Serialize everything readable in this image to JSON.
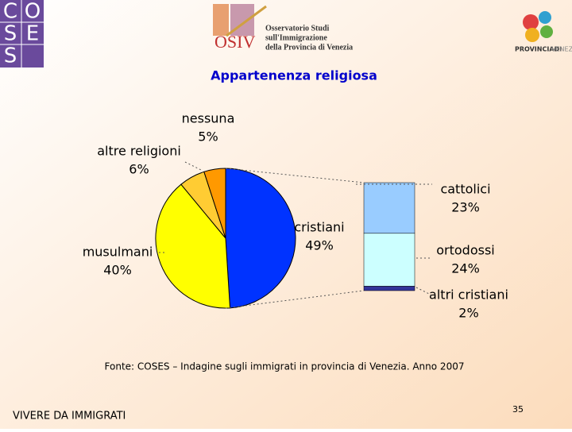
{
  "header": {
    "coses_logo": [
      "C",
      "O",
      "S",
      "E",
      "S"
    ],
    "osiv_logo": "OSIV",
    "osiv_text": [
      "Osservatorio Studi",
      "sull'Immigrazione",
      "della Provincia di Venezia"
    ],
    "provincia_logo": [
      "PROVINCIADI",
      "VENEZIA"
    ]
  },
  "chart_data": {
    "type": "pie",
    "title": "Appartenenza religiosa",
    "categories": [
      "cristiani",
      "musulmani",
      "altre religioni",
      "nessuna"
    ],
    "values": [
      49,
      40,
      6,
      5
    ],
    "value_labels": [
      "49%",
      "40%",
      "6%",
      "5%"
    ],
    "colors": [
      "#0033ff",
      "#ffff00",
      "#ffcc33",
      "#ff9900"
    ],
    "breakdown": {
      "categories": [
        "cattolici",
        "ortodossi",
        "altri cristiani"
      ],
      "values": [
        23,
        24,
        2
      ],
      "value_labels": [
        "23%",
        "24%",
        "2%"
      ],
      "colors": [
        "#99ccff",
        "#ccffff",
        "#333399"
      ]
    }
  },
  "footer": {
    "source": "Fonte: COSES – Indagine sugli immigrati in provincia di Venezia. Anno 2007",
    "left": "VIVERE DA IMMIGRATI",
    "page": "35"
  }
}
